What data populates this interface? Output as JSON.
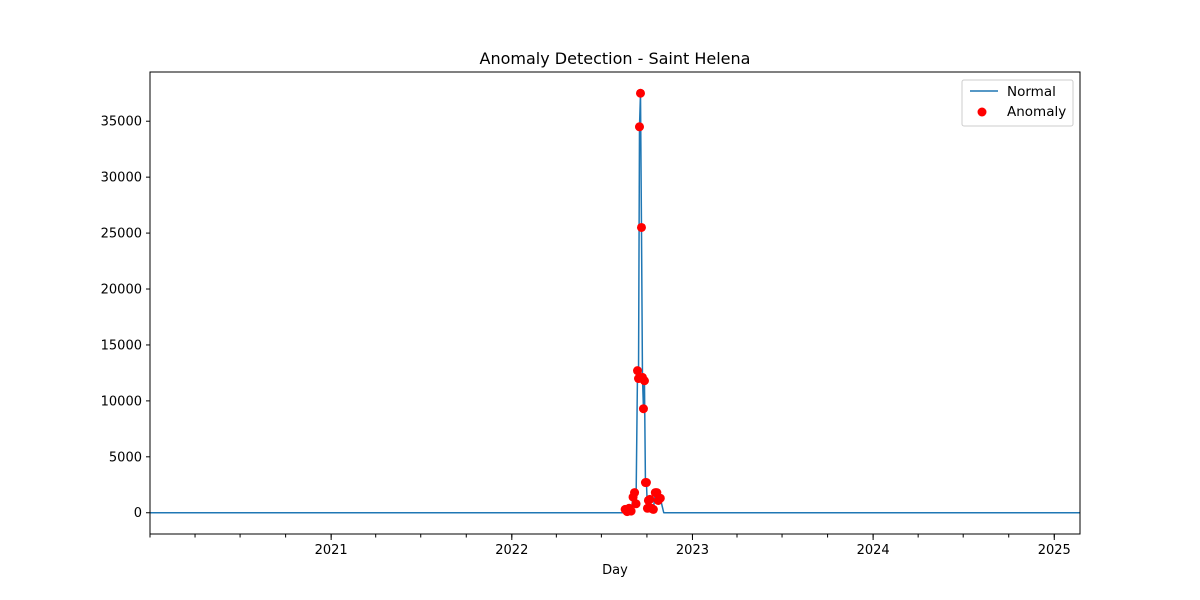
{
  "chart_data": {
    "type": "line",
    "title": "Anomaly Detection - Saint Helena",
    "xlabel": "Day",
    "ylabel": "",
    "xlim": [
      "2020-01-01",
      "2025-02-22"
    ],
    "ylim": [
      -1900,
      39400
    ],
    "x_ticks": [
      {
        "date": "2021-01-01",
        "label": "2021"
      },
      {
        "date": "2022-01-01",
        "label": "2022"
      },
      {
        "date": "2023-01-01",
        "label": "2023"
      },
      {
        "date": "2024-01-01",
        "label": "2024"
      },
      {
        "date": "2025-01-01",
        "label": "2025"
      }
    ],
    "y_ticks": [
      0,
      5000,
      10000,
      15000,
      20000,
      25000,
      30000,
      35000
    ],
    "legend": {
      "position": "top-right",
      "entries": [
        "Normal",
        "Anomaly"
      ]
    },
    "series": [
      {
        "name": "Normal",
        "style": "line",
        "color": "#1f77b4",
        "points": [
          [
            "2020-01-01",
            0
          ],
          [
            "2022-08-14",
            0
          ],
          [
            "2022-08-18",
            300
          ],
          [
            "2022-08-22",
            100
          ],
          [
            "2022-08-26",
            400
          ],
          [
            "2022-08-30",
            150
          ],
          [
            "2022-09-03",
            1400
          ],
          [
            "2022-09-06",
            1800
          ],
          [
            "2022-09-09",
            800
          ],
          [
            "2022-09-12",
            12700
          ],
          [
            "2022-09-14",
            12000
          ],
          [
            "2022-09-16",
            34500
          ],
          [
            "2022-09-18",
            37500
          ],
          [
            "2022-09-20",
            25500
          ],
          [
            "2022-09-22",
            12100
          ],
          [
            "2022-09-24",
            9300
          ],
          [
            "2022-09-26",
            11800
          ],
          [
            "2022-09-28",
            2700
          ],
          [
            "2022-09-30",
            2700
          ],
          [
            "2022-10-02",
            400
          ],
          [
            "2022-10-04",
            1100
          ],
          [
            "2022-10-07",
            1200
          ],
          [
            "2022-10-10",
            400
          ],
          [
            "2022-10-14",
            300
          ],
          [
            "2022-10-18",
            1800
          ],
          [
            "2022-10-21",
            1800
          ],
          [
            "2022-10-24",
            1100
          ],
          [
            "2022-10-28",
            1300
          ],
          [
            "2022-11-04",
            0
          ],
          [
            "2025-02-22",
            0
          ]
        ]
      },
      {
        "name": "Anomaly",
        "style": "scatter",
        "color": "#ff0000",
        "points": [
          [
            "2022-08-18",
            300
          ],
          [
            "2022-08-22",
            100
          ],
          [
            "2022-08-26",
            400
          ],
          [
            "2022-08-30",
            150
          ],
          [
            "2022-09-03",
            1400
          ],
          [
            "2022-09-06",
            1800
          ],
          [
            "2022-09-09",
            800
          ],
          [
            "2022-09-12",
            12700
          ],
          [
            "2022-09-14",
            12000
          ],
          [
            "2022-09-16",
            34500
          ],
          [
            "2022-09-18",
            37500
          ],
          [
            "2022-09-20",
            25500
          ],
          [
            "2022-09-22",
            12100
          ],
          [
            "2022-09-24",
            9300
          ],
          [
            "2022-09-26",
            11800
          ],
          [
            "2022-09-28",
            2700
          ],
          [
            "2022-09-30",
            2700
          ],
          [
            "2022-10-02",
            400
          ],
          [
            "2022-10-04",
            1100
          ],
          [
            "2022-10-07",
            1200
          ],
          [
            "2022-10-10",
            400
          ],
          [
            "2022-10-14",
            300
          ],
          [
            "2022-10-18",
            1800
          ],
          [
            "2022-10-21",
            1800
          ],
          [
            "2022-10-24",
            1100
          ],
          [
            "2022-10-28",
            1300
          ]
        ]
      }
    ]
  }
}
